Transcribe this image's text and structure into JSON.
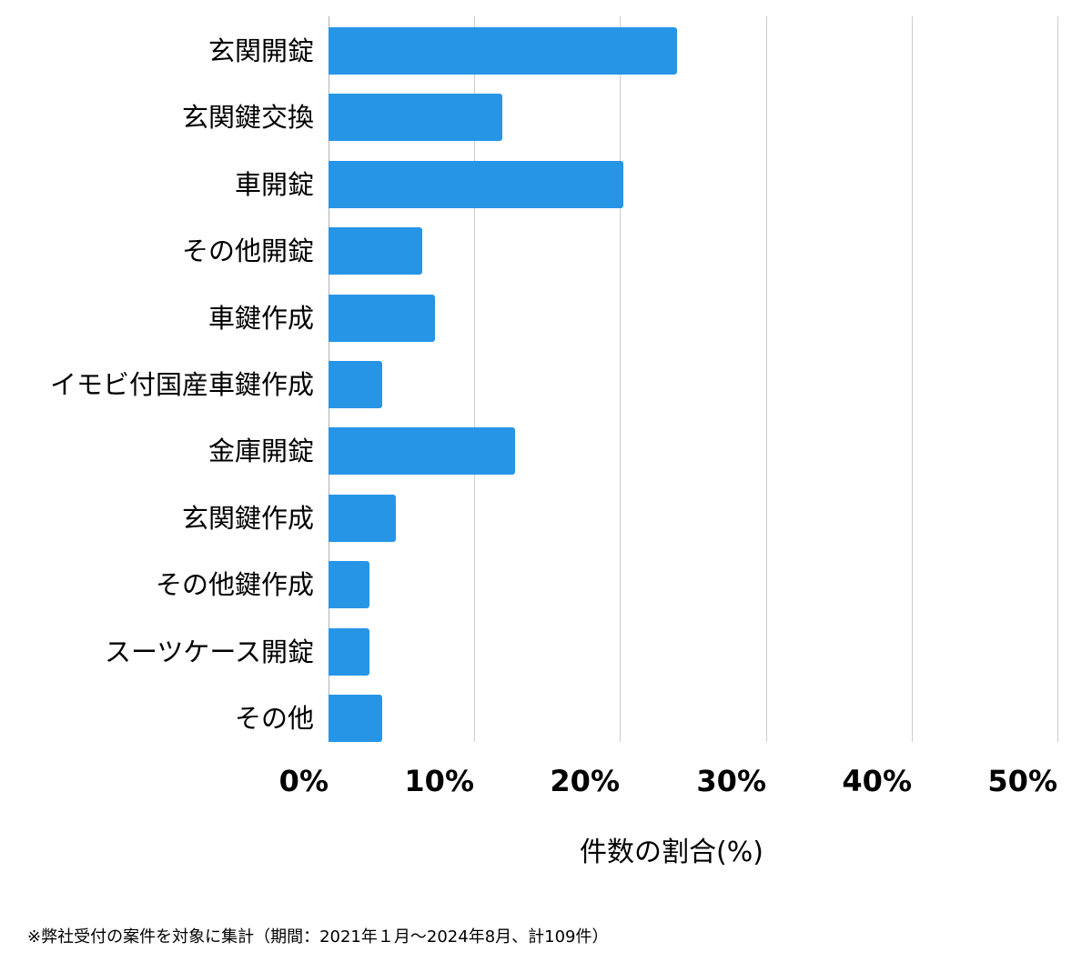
{
  "chart_data": {
    "type": "bar",
    "orientation": "horizontal",
    "title": "",
    "xlabel": "件数の割合(%)",
    "ylabel": "",
    "xlim": [
      0,
      50
    ],
    "x_ticks": [
      "0%",
      "10%",
      "20%",
      "30%",
      "40%",
      "50%"
    ],
    "grid": true,
    "legend": null,
    "bar_color": "#2795e6",
    "categories": [
      "玄関開錠",
      "玄関鍵交換",
      "車開錠",
      "その他開錠",
      "車鍵作成",
      "イモビ付国産車鍵作成",
      "金庫開錠",
      "玄関鍵作成",
      "その他鍵作成",
      "スーツケース開錠",
      "その他"
    ],
    "values": [
      23.9,
      11.9,
      20.2,
      6.4,
      7.3,
      3.7,
      12.8,
      4.6,
      2.8,
      2.8,
      3.7
    ],
    "counts_estimated": [
      26,
      13,
      22,
      7,
      8,
      4,
      14,
      5,
      3,
      3,
      4
    ],
    "total_count": 109,
    "footnote": "※弊社受付の案件を対象に集計（期間：2021年１月～2024年8月、計109件）"
  },
  "axis": {
    "ticks": [
      "0%",
      "10%",
      "20%",
      "30%",
      "40%",
      "50%"
    ],
    "xlabel": "件数の割合(%)"
  },
  "footnote": "※弊社受付の案件を対象に集計（期間：2021年１月～2024年8月、計109件）"
}
